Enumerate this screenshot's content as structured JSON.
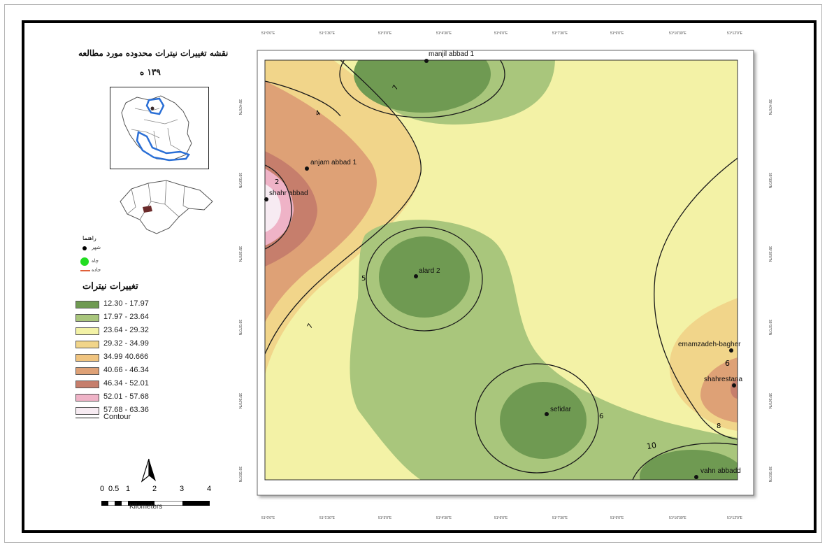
{
  "map": {
    "title_line1": "نقشه تغییرات نیترات محدوده مورد مطالعه",
    "title_line2": "۱۳۹ ه",
    "legend_header": "راهنما",
    "point_legend": [
      {
        "label": "شهر",
        "symbol": "black-dot"
      },
      {
        "label": "چاه",
        "symbol": "green-dot"
      },
      {
        "label": "جاده",
        "symbol": "red-line"
      }
    ],
    "class_title": "تغییرات نیترات",
    "classes": [
      {
        "label": "12.30 - 17.97",
        "color": "#6f9a52"
      },
      {
        "label": "17.97 - 23.64",
        "color": "#a9c67c"
      },
      {
        "label": "23.64 - 29.32",
        "color": "#f3f2a6"
      },
      {
        "label": "29.32 - 34.99",
        "color": "#f1d58a"
      },
      {
        "label": "34.99  40.666",
        "color": "#f0c47f"
      },
      {
        "label": "40.66 - 46.34",
        "color": "#dea176"
      },
      {
        "label": "46.34 - 52.01",
        "color": "#c67e6c"
      },
      {
        "label": "52.01 - 57.68",
        "color": "#efb3c7"
      },
      {
        "label": "57.68 - 63.36",
        "color": "#f7ebf2"
      }
    ],
    "contour_label": "Contour",
    "scale_numbers": [
      "0",
      "0.5",
      "1",
      "2",
      "3",
      "4"
    ],
    "scale_unit": "Kilometers",
    "stations": [
      {
        "name": "manjil abbad 1"
      },
      {
        "name": "anjam abbad 1"
      },
      {
        "name": "shahr abbad"
      },
      {
        "name": "alard 2"
      },
      {
        "name": "sefidar"
      },
      {
        "name": "emamzadeh-bagher"
      },
      {
        "name": "shahrestana"
      },
      {
        "name": "vahn abbadd"
      }
    ],
    "contour_labels": [
      "7",
      "4",
      "2",
      "5",
      "7",
      "6",
      "6",
      "10",
      "8"
    ],
    "top_ticks": [
      "51°0'0\"E",
      "51°1'30\"E",
      "51°3'0\"E",
      "51°4'30\"E",
      "51°6'0\"E",
      "51°7'30\"E",
      "51°9'0\"E",
      "51°10'30\"E",
      "51°12'0\"E"
    ],
    "bottom_ticks": [
      "51°0'0\"E",
      "51°1'30\"E",
      "51°3'0\"E",
      "51°4'30\"E",
      "51°6'0\"E",
      "51°7'30\"E",
      "51°9'0\"E",
      "51°10'30\"E",
      "51°12'0\"E"
    ],
    "side_ticks": [
      "35°40'0\"N",
      "35°39'0\"N",
      "35°38'0\"N",
      "35°37'0\"N",
      "35°36'0\"N",
      "35°35'0\"N"
    ],
    "colors": {
      "frame": "#000000",
      "background_map": "#f3f2a6",
      "contour": "#1a1a1a"
    }
  }
}
